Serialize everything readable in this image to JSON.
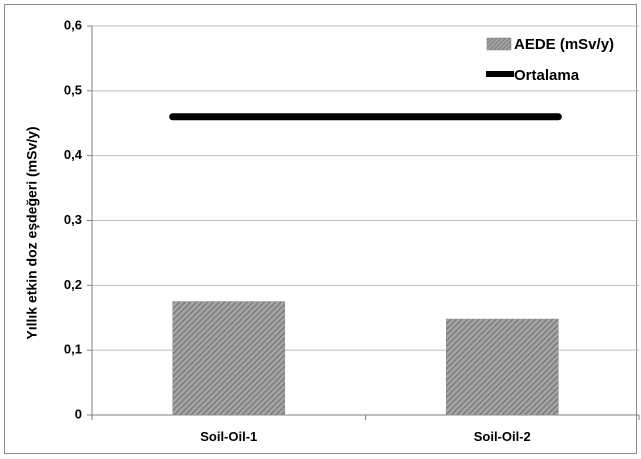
{
  "chart_data": {
    "type": "bar",
    "categories": [
      "Soil-Oil-1",
      "Soil-Oil-2"
    ],
    "series": [
      {
        "name": "AEDE (mSv/y)",
        "values": [
          0.175,
          0.148
        ],
        "color": "#8a8a8a"
      },
      {
        "name": "Ortalama",
        "kind": "line",
        "value": 0.46,
        "color": "#000000"
      }
    ],
    "ylabel": "Yıllık etkin doz eşdeğeri (mSv/y)",
    "xlabel": "",
    "ylim": [
      0,
      0.6
    ],
    "yticks": [
      0,
      0.1,
      0.2,
      0.3,
      0.4,
      0.5,
      0.6
    ],
    "ytick_labels": [
      "0",
      "0,1",
      "0,2",
      "0,3",
      "0,4",
      "0,5",
      "0,6"
    ],
    "grid": true,
    "legend_position": "top-right"
  }
}
